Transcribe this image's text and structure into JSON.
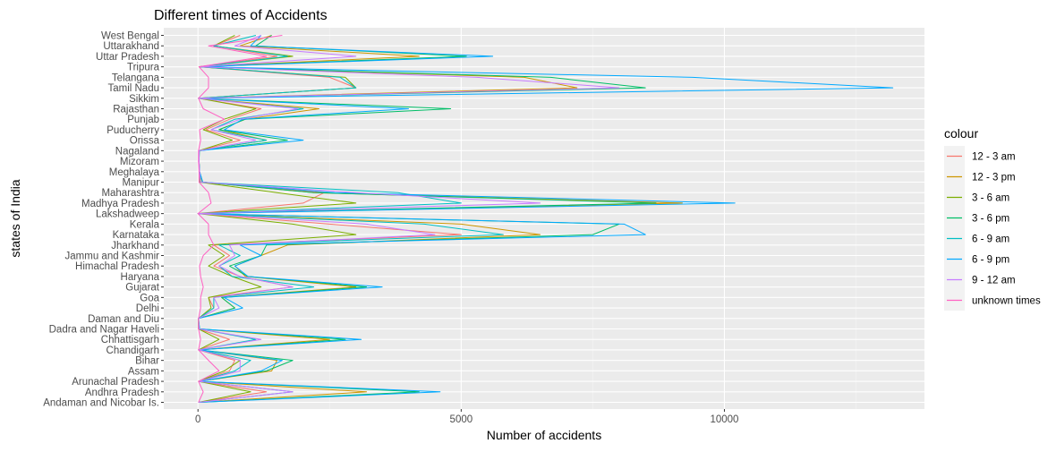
{
  "chart_data": {
    "type": "line",
    "title": "Different times of Accidents",
    "xlabel": "Number of accidents",
    "ylabel": "states of India",
    "xlim": [
      -650,
      13800
    ],
    "x_ticks": [
      0,
      5000,
      10000
    ],
    "grid": true,
    "orientation": "horizontal",
    "legend": {
      "title": "colour",
      "position": "right"
    },
    "categories": [
      "Andaman and Nicobar Is.",
      "Andhra Pradesh",
      "Arunachal Pradesh",
      "Assam",
      "Bihar",
      "Chandigarh",
      "Chhattisgarh",
      "Dadra and Nagar Haveli",
      "Daman and Diu",
      "Delhi",
      "Goa",
      "Gujarat",
      "Haryana",
      "Himachal Pradesh",
      "Jammu and Kashmir",
      "Jharkhand",
      "Karnataka",
      "Kerala",
      "Lakshadweep",
      "Madhya Pradesh",
      "Maharashtra",
      "Manipur",
      "Meghalaya",
      "Mizoram",
      "Nagaland",
      "Orissa",
      "Puducherry",
      "Punjab",
      "Rajasthan",
      "Sikkim",
      "Tamil Nadu",
      "Telangana",
      "Tripura",
      "Uttar Pradesh",
      "Uttarakhand",
      "West Bengal"
    ],
    "series": [
      {
        "name": "12 - 3 am",
        "color": "#F8766D",
        "values": [
          10,
          1300,
          10,
          600,
          700,
          10,
          600,
          10,
          10,
          300,
          200,
          1800,
          800,
          300,
          600,
          300,
          5000,
          2500,
          0,
          2000,
          2400,
          40,
          30,
          20,
          20,
          800,
          150,
          600,
          1200,
          10,
          3000,
          2500,
          20,
          1500,
          300,
          800
        ]
      },
      {
        "name": "12 - 3 pm",
        "color": "#CD9600",
        "values": [
          20,
          3200,
          20,
          1400,
          1500,
          20,
          2500,
          20,
          10,
          700,
          450,
          3000,
          900,
          700,
          1200,
          1700,
          6500,
          5000,
          0,
          9200,
          2200,
          80,
          30,
          20,
          25,
          1300,
          400,
          900,
          2300,
          10,
          7200,
          6200,
          40,
          4200,
          800,
          1400
        ]
      },
      {
        "name": "3 - 6 am",
        "color": "#7CAE00",
        "values": [
          10,
          1000,
          10,
          500,
          800,
          10,
          400,
          10,
          10,
          250,
          200,
          1200,
          650,
          200,
          500,
          200,
          3000,
          1800,
          0,
          3000,
          1500,
          30,
          30,
          20,
          20,
          650,
          100,
          500,
          1100,
          10,
          3000,
          2800,
          20,
          1800,
          300,
          700
        ]
      },
      {
        "name": "3 - 6 pm",
        "color": "#00BE67",
        "values": [
          20,
          4200,
          30,
          1300,
          1800,
          20,
          2800,
          30,
          10,
          700,
          450,
          3200,
          950,
          600,
          1200,
          1300,
          7500,
          8000,
          0,
          8700,
          2200,
          90,
          30,
          20,
          25,
          1700,
          400,
          900,
          4800,
          10,
          8500,
          6700,
          40,
          5100,
          1100,
          1400
        ]
      },
      {
        "name": "6 - 9 am",
        "color": "#00BFC4",
        "values": [
          10,
          1800,
          20,
          700,
          1000,
          10,
          1100,
          20,
          10,
          300,
          300,
          2200,
          650,
          400,
          800,
          400,
          5800,
          4300,
          0,
          5000,
          3800,
          50,
          30,
          20,
          20,
          1300,
          250,
          700,
          2000,
          10,
          3000,
          2700,
          30,
          1700,
          300,
          1100
        ]
      },
      {
        "name": "6 - 9 pm",
        "color": "#00A9FF",
        "values": [
          20,
          4600,
          30,
          1200,
          1600,
          20,
          3100,
          30,
          10,
          850,
          500,
          3500,
          950,
          700,
          1200,
          800,
          8500,
          8100,
          0,
          10200,
          2600,
          90,
          30,
          20,
          25,
          2000,
          500,
          850,
          4000,
          10,
          13200,
          9400,
          40,
          5600,
          1000,
          1200
        ]
      },
      {
        "name": "9 - 12 am",
        "color": "#C77CFF",
        "values": [
          10,
          1800,
          20,
          800,
          800,
          10,
          1200,
          20,
          10,
          400,
          300,
          1800,
          800,
          400,
          700,
          600,
          4500,
          3200,
          0,
          6500,
          3000,
          50,
          30,
          20,
          20,
          1100,
          250,
          800,
          1900,
          10,
          8000,
          5300,
          30,
          3000,
          700,
          1200
        ]
      },
      {
        "name": "unknown times",
        "color": "#FF61C3",
        "values": [
          10,
          100,
          10,
          400,
          200,
          10,
          50,
          10,
          10,
          50,
          50,
          100,
          50,
          30,
          100,
          300,
          200,
          200,
          0,
          250,
          200,
          20,
          20,
          10,
          10,
          50,
          30,
          500,
          100,
          10,
          200,
          200,
          20,
          1300,
          200,
          1600
        ]
      }
    ]
  }
}
